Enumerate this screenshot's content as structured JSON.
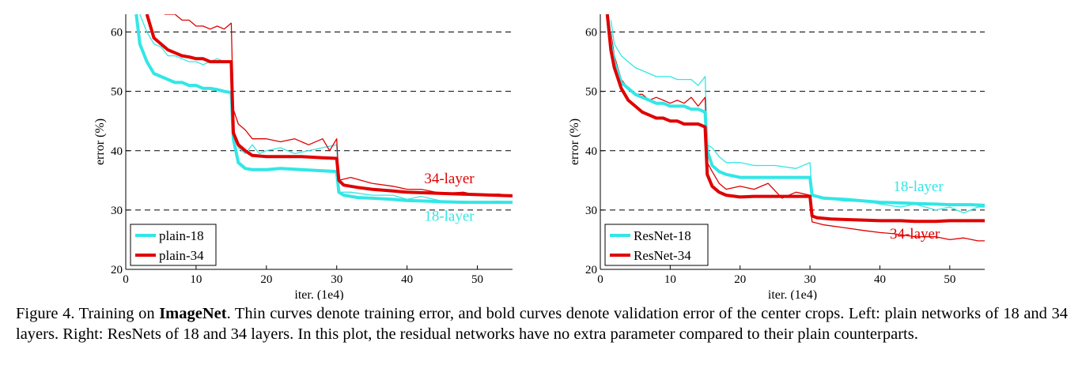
{
  "chart_data": [
    {
      "type": "line",
      "xlabel": "iter. (1e4)",
      "ylabel": "error (%)",
      "xlim": [
        0,
        55
      ],
      "ylim": [
        20,
        63
      ],
      "xticks": [
        0,
        10,
        20,
        30,
        40,
        50
      ],
      "yticks": [
        20,
        30,
        40,
        50,
        60
      ],
      "grid": "dashed horizontal at 30, 40, 50, 60",
      "legend_position": "bottom-left",
      "annotations": [
        {
          "text": "34-layer",
          "color": "#e00000",
          "x": 46,
          "y": 34.5
        },
        {
          "text": "18-layer",
          "color": "#33e6e6",
          "x": 46,
          "y": 28.2
        }
      ],
      "series": [
        {
          "name": "plain-18 (val)",
          "legend": "plain-18",
          "color": "#33e6e6",
          "style": "bold",
          "x": [
            1.5,
            2,
            3,
            4,
            5,
            6,
            7,
            8,
            9,
            10,
            11,
            12,
            13,
            14,
            15,
            15.3,
            16,
            17,
            18,
            20,
            22,
            25,
            28,
            30,
            30.3,
            31,
            33,
            35,
            38,
            40,
            43,
            45,
            48,
            50,
            53,
            55
          ],
          "y": [
            63,
            58,
            55,
            53,
            52.5,
            52,
            51.5,
            51.5,
            51,
            51,
            50.5,
            50.5,
            50.3,
            50,
            49.8,
            42,
            38,
            37,
            36.8,
            36.8,
            37,
            36.8,
            36.6,
            36.5,
            33,
            32.5,
            32.1,
            32,
            31.8,
            31.6,
            31.5,
            31.4,
            31.3,
            31.3,
            31.3,
            31.3
          ]
        },
        {
          "name": "plain-18 (train)",
          "color": "#33e6e6",
          "style": "thin",
          "x": [
            2,
            3,
            4,
            5,
            6,
            7,
            8,
            9,
            10,
            11,
            12,
            13,
            14,
            15,
            15.3,
            16,
            17,
            18,
            19,
            20,
            22,
            24,
            26,
            28,
            30,
            30.3,
            32,
            35,
            38,
            40,
            42,
            45,
            48,
            50,
            53,
            55
          ],
          "y": [
            63,
            60,
            58,
            57.5,
            56,
            56,
            55.5,
            55,
            55,
            54.5,
            55,
            55.5,
            55,
            55,
            44,
            40.5,
            39.5,
            41,
            39.5,
            40,
            40.5,
            39.5,
            40,
            40.5,
            41,
            33,
            33,
            32.5,
            32.5,
            31.8,
            32.3,
            31.5,
            31.5,
            31.3,
            31.5,
            31.2
          ]
        },
        {
          "name": "plain-34 (val)",
          "legend": "plain-34",
          "color": "#e00000",
          "style": "bold",
          "x": [
            3,
            4,
            5,
            6,
            7,
            8,
            9,
            10,
            11,
            12,
            13,
            14,
            15,
            15.3,
            16,
            17,
            18,
            20,
            22,
            25,
            28,
            30,
            30.3,
            31,
            33,
            35,
            38,
            40,
            45,
            50,
            55
          ],
          "y": [
            63,
            59,
            58,
            57,
            56.5,
            56,
            55.8,
            55.5,
            55.5,
            55,
            55,
            55,
            55,
            43,
            41,
            40,
            39.2,
            39,
            39,
            39,
            38.8,
            38.7,
            35,
            34.2,
            33.8,
            33.5,
            33.2,
            33,
            32.8,
            32.6,
            32.4
          ]
        },
        {
          "name": "plain-34 (train)",
          "color": "#e00000",
          "style": "thin",
          "x": [
            5.5,
            7,
            8,
            9,
            10,
            11,
            12,
            13,
            14,
            15,
            15.3,
            16,
            17,
            18,
            20,
            22,
            24,
            26,
            28,
            29,
            30,
            30.3,
            32,
            35,
            38,
            40,
            42,
            45,
            48,
            50,
            53,
            55
          ],
          "y": [
            63,
            63,
            62,
            62,
            61,
            61,
            60.5,
            61,
            60.5,
            61.5,
            47,
            44.5,
            43.5,
            42,
            42,
            41.5,
            42,
            41,
            42,
            40,
            42,
            35,
            35.5,
            34.5,
            34,
            33.5,
            33.5,
            32.8,
            33,
            32.5,
            32.7,
            32.3
          ]
        }
      ]
    },
    {
      "type": "line",
      "xlabel": "iter. (1e4)",
      "ylabel": "error (%)",
      "xlim": [
        0,
        55
      ],
      "ylim": [
        20,
        63
      ],
      "xticks": [
        0,
        10,
        20,
        30,
        40,
        50
      ],
      "yticks": [
        20,
        30,
        40,
        50,
        60
      ],
      "grid": "dashed horizontal at 30, 40, 50, 60",
      "legend_position": "bottom-left",
      "annotations": [
        {
          "text": "18-layer",
          "color": "#33e6e6",
          "x": 45.5,
          "y": 33.2
        },
        {
          "text": "34-layer",
          "color": "#e00000",
          "x": 45,
          "y": 25.2
        }
      ],
      "series": [
        {
          "name": "ResNet-18 (val)",
          "legend": "ResNet-18",
          "color": "#33e6e6",
          "style": "bold",
          "x": [
            1,
            1.5,
            2,
            3,
            4,
            5,
            6,
            7,
            8,
            9,
            10,
            11,
            12,
            13,
            14,
            15,
            15.3,
            16,
            17,
            18,
            20,
            22,
            25,
            28,
            30,
            30.3,
            32,
            35,
            38,
            40,
            43,
            45,
            48,
            50,
            53,
            55
          ],
          "y": [
            63,
            58,
            55,
            51.5,
            50.5,
            49.5,
            49,
            48.5,
            48,
            48,
            47.5,
            47.5,
            47.5,
            47,
            47,
            46.5,
            40,
            37.5,
            36.5,
            36,
            35.5,
            35.5,
            35.5,
            35.5,
            35.5,
            32.5,
            32,
            31.8,
            31.5,
            31.3,
            31.2,
            31.1,
            31,
            30.9,
            30.9,
            30.8
          ]
        },
        {
          "name": "ResNet-18 (train)",
          "color": "#33e6e6",
          "style": "thin",
          "x": [
            1.5,
            2,
            3,
            4,
            5,
            6,
            7,
            8,
            9,
            10,
            11,
            12,
            13,
            14,
            15,
            15.3,
            16,
            17,
            18,
            20,
            22,
            25,
            28,
            30,
            30.3,
            32,
            35,
            38,
            40,
            43,
            45,
            48,
            50,
            52,
            54,
            55
          ],
          "y": [
            62,
            58,
            56,
            55,
            54,
            53.5,
            53,
            52.5,
            52.5,
            52.5,
            52,
            52,
            52,
            51,
            52.5,
            41,
            40.5,
            39,
            38,
            38,
            37.5,
            37.5,
            37,
            38,
            32.5,
            32,
            31.5,
            31.5,
            31,
            30.5,
            31,
            30,
            30.5,
            29.5,
            30.5,
            30.5
          ]
        },
        {
          "name": "ResNet-34 (val)",
          "legend": "ResNet-34",
          "color": "#e00000",
          "style": "bold",
          "x": [
            1,
            1.5,
            2,
            3,
            4,
            5,
            6,
            7,
            8,
            9,
            10,
            11,
            12,
            13,
            14,
            15,
            15.3,
            16,
            17,
            18,
            20,
            22,
            25,
            28,
            30,
            30.3,
            31,
            33,
            35,
            38,
            40,
            43,
            45,
            48,
            50,
            53,
            55
          ],
          "y": [
            63,
            57,
            54,
            50.5,
            48.5,
            47.5,
            46.5,
            46,
            45.5,
            45.5,
            45,
            45,
            44.5,
            44.5,
            44.5,
            44,
            36,
            34,
            33,
            32.5,
            32.2,
            32.3,
            32.3,
            32.3,
            32.3,
            29,
            28.7,
            28.5,
            28.4,
            28.3,
            28.2,
            28.2,
            28.1,
            28.1,
            28.2,
            28.2,
            28.2
          ]
        },
        {
          "name": "ResNet-34 (train)",
          "color": "#e00000",
          "style": "thin",
          "x": [
            1.5,
            2,
            3,
            4,
            5,
            6,
            7,
            8,
            9,
            10,
            11,
            12,
            13,
            14,
            15,
            15.3,
            16,
            17,
            18,
            20,
            22,
            24,
            26,
            28,
            30,
            30.3,
            32,
            35,
            38,
            40,
            42,
            45,
            48,
            50,
            52,
            54,
            55
          ],
          "y": [
            60,
            56,
            52,
            50.5,
            49.5,
            49.5,
            48.5,
            49,
            48.5,
            48,
            48.5,
            48,
            49,
            47.5,
            49,
            38,
            36.5,
            34.5,
            33.5,
            34,
            33.5,
            34.5,
            32,
            33,
            32.5,
            28,
            27.5,
            27,
            26.5,
            26.2,
            26,
            25.5,
            25.5,
            25,
            25.3,
            24.8,
            24.8
          ]
        }
      ]
    }
  ],
  "caption": {
    "lead": "Figure 4. Training on ",
    "bold": "ImageNet",
    "rest": ". Thin curves denote training error, and bold curves denote validation error of the center crops. Left: plain networks of 18 and 34 layers. Right: ResNets of 18 and 34 layers. In this plot, the residual networks have no extra parameter compared to their plain counterparts."
  }
}
